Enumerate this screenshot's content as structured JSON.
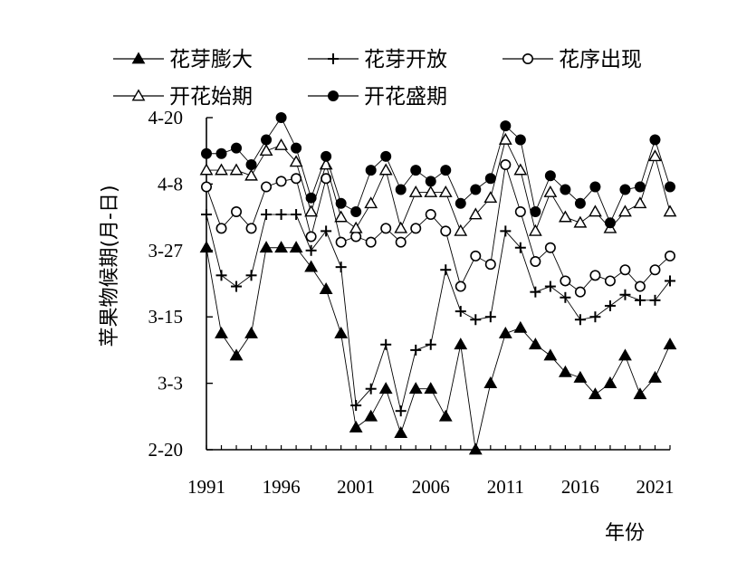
{
  "chart_data": {
    "type": "line",
    "xlabel": "年份",
    "ylabel": "苹果物候期(月-日)",
    "x": [
      1991,
      1992,
      1993,
      1994,
      1995,
      1996,
      1997,
      1998,
      1999,
      2000,
      2001,
      2002,
      2003,
      2004,
      2005,
      2006,
      2007,
      2008,
      2009,
      2010,
      2011,
      2012,
      2013,
      2014,
      2015,
      2016,
      2017,
      2018,
      2019,
      2020,
      2021,
      2022
    ],
    "x_ticks": [
      1991,
      1996,
      2001,
      2006,
      2011,
      2016,
      2021
    ],
    "y_ticks": [
      "2-20",
      "3-3",
      "3-15",
      "3-27",
      "4-8",
      "4-20"
    ],
    "y_tick_values": [
      0,
      12,
      24,
      36,
      48,
      60
    ],
    "y_unit": "days since 2-20",
    "ylim": [
      0,
      60
    ],
    "legend_position": "top",
    "series": [
      {
        "name": "花芽膨大",
        "marker": "filled-triangle",
        "values": [
          36.5,
          21,
          17,
          21,
          36.5,
          36.5,
          36.5,
          33,
          29,
          21,
          4,
          6,
          11,
          3,
          11,
          11,
          6,
          19,
          0,
          12,
          21,
          22,
          19,
          17,
          14,
          13,
          10,
          12,
          17,
          10,
          13,
          19
        ]
      },
      {
        "name": "花芽开放",
        "marker": "plus",
        "values": [
          42.5,
          31.5,
          29.5,
          31.5,
          42.5,
          42.5,
          42.5,
          36,
          39.5,
          33,
          8,
          11,
          19,
          7,
          18,
          19,
          32.5,
          25,
          23.5,
          24,
          39.5,
          36.5,
          28.5,
          29.5,
          27.5,
          23.5,
          24,
          26,
          28,
          27,
          27,
          30.5
        ]
      },
      {
        "name": "花序出现",
        "marker": "open-circle",
        "values": [
          47.5,
          40,
          43,
          40,
          47.5,
          48.5,
          49,
          38.5,
          49,
          37.5,
          38.5,
          37.5,
          40,
          37.5,
          40,
          42.5,
          39.5,
          29.5,
          35,
          33.5,
          51.5,
          43,
          34,
          36.5,
          30.5,
          28.5,
          31.5,
          30.5,
          32.5,
          29.5,
          32.5,
          35
        ]
      },
      {
        "name": "开花始期",
        "marker": "open-triangle",
        "values": [
          50.5,
          50.5,
          50.5,
          49.5,
          54,
          55,
          52,
          43,
          51.5,
          42,
          40,
          44.5,
          50.5,
          40,
          46.5,
          46.5,
          46.5,
          39.5,
          42.5,
          45.5,
          56,
          50.5,
          39.5,
          46.5,
          42,
          41,
          43,
          40,
          43,
          44.5,
          53,
          43
        ]
      },
      {
        "name": "开花盛期",
        "marker": "filled-circle",
        "values": [
          53.5,
          53.5,
          54.5,
          51.5,
          56,
          60,
          54.5,
          45.5,
          53,
          44.5,
          43,
          50.5,
          53,
          47,
          50.5,
          48.5,
          50.5,
          44.5,
          47,
          49,
          58.5,
          56,
          43,
          49.5,
          47,
          44.5,
          47.5,
          41,
          47,
          47.5,
          56,
          47.5
        ]
      }
    ]
  }
}
